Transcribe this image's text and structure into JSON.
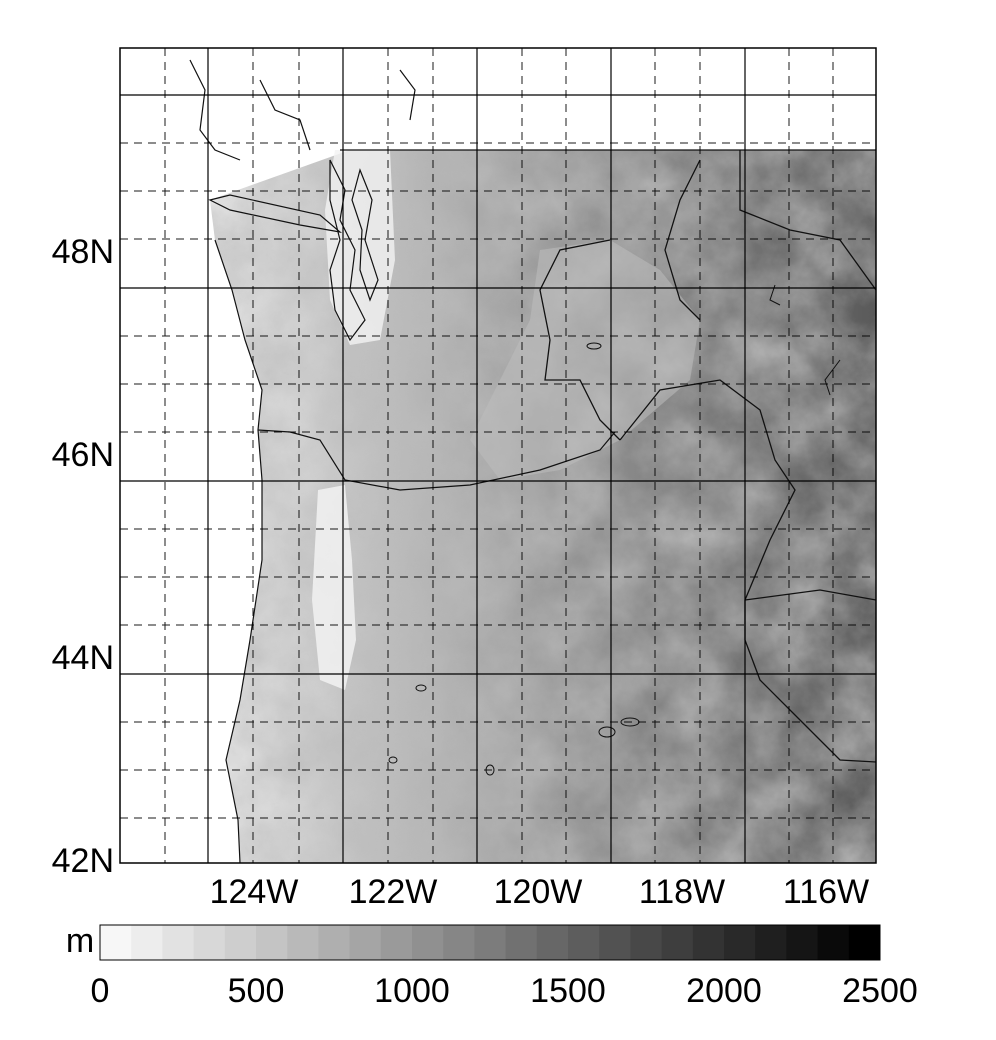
{
  "map": {
    "lat_labels": [
      "48N",
      "46N",
      "44N",
      "42N"
    ],
    "lon_labels": [
      "124W",
      "122W",
      "120W",
      "118W",
      "116W"
    ],
    "state_labels": [],
    "terrain_variable": "elevation"
  },
  "colorbar": {
    "unit": "m",
    "tick_labels": [
      "0",
      "500",
      "1000",
      "1500",
      "2000",
      "2500"
    ],
    "range": [
      0,
      2500
    ],
    "levels": 25,
    "color_low": "#f7f7f7",
    "color_high": "#000000"
  },
  "colors": {
    "frame": "#000000",
    "coast": "#111111",
    "ocean": "#ffffff"
  }
}
